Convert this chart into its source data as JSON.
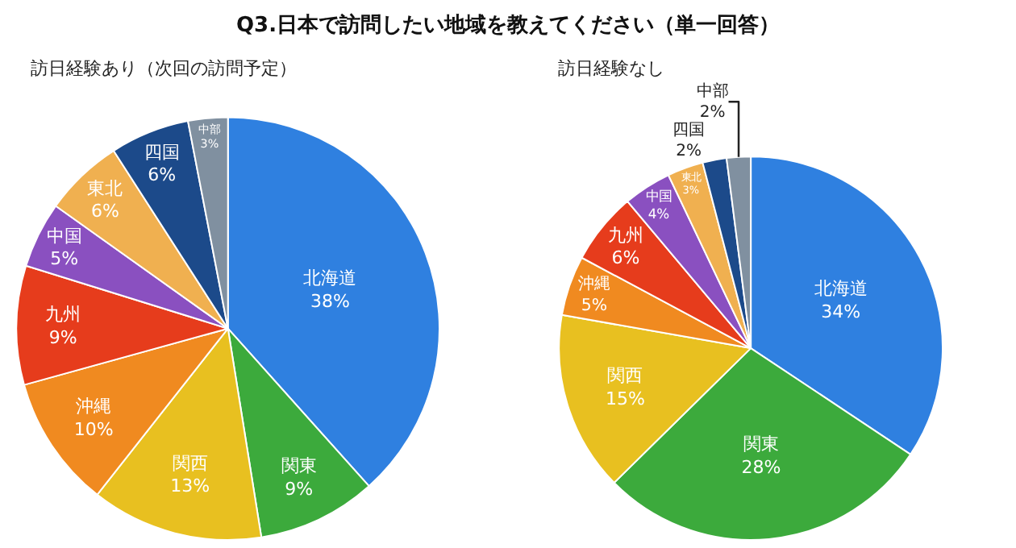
{
  "chart_data": [
    {
      "type": "pie",
      "title": "Q3.日本で訪問したい地域を教えてください（単一回答）",
      "subtitle": "訪日経験あり（次回の訪問予定）",
      "categories": [
        "北海道",
        "関東",
        "関西",
        "沖縄",
        "九州",
        "中国",
        "東北",
        "四国",
        "中部"
      ],
      "values": [
        38,
        9,
        13,
        10,
        9,
        5,
        6,
        6,
        3
      ],
      "value_labels": [
        "38%",
        "9%",
        "13%",
        "10%",
        "9%",
        "5%",
        "6%",
        "6%",
        "3%"
      ],
      "colors": [
        "#2f80e0",
        "#3caa3c",
        "#e8c020",
        "#f08a20",
        "#e63c1c",
        "#8a50c0",
        "#f0b050",
        "#1c4a8a",
        "#8090a0"
      ],
      "legend": false
    },
    {
      "type": "pie",
      "subtitle": "訪日経験なし",
      "categories": [
        "北海道",
        "関東",
        "関西",
        "沖縄",
        "九州",
        "中国",
        "東北",
        "四国",
        "中部"
      ],
      "values": [
        34,
        28,
        15,
        5,
        6,
        4,
        3,
        2,
        2
      ],
      "value_labels": [
        "34%",
        "28%",
        "15%",
        "5%",
        "6%",
        "4%",
        "3%",
        "2%",
        "2%"
      ],
      "colors": [
        "#2f80e0",
        "#3caa3c",
        "#e8c020",
        "#f08a20",
        "#e63c1c",
        "#8a50c0",
        "#f0b050",
        "#1c4a8a",
        "#8090a0"
      ],
      "legend": false
    }
  ]
}
